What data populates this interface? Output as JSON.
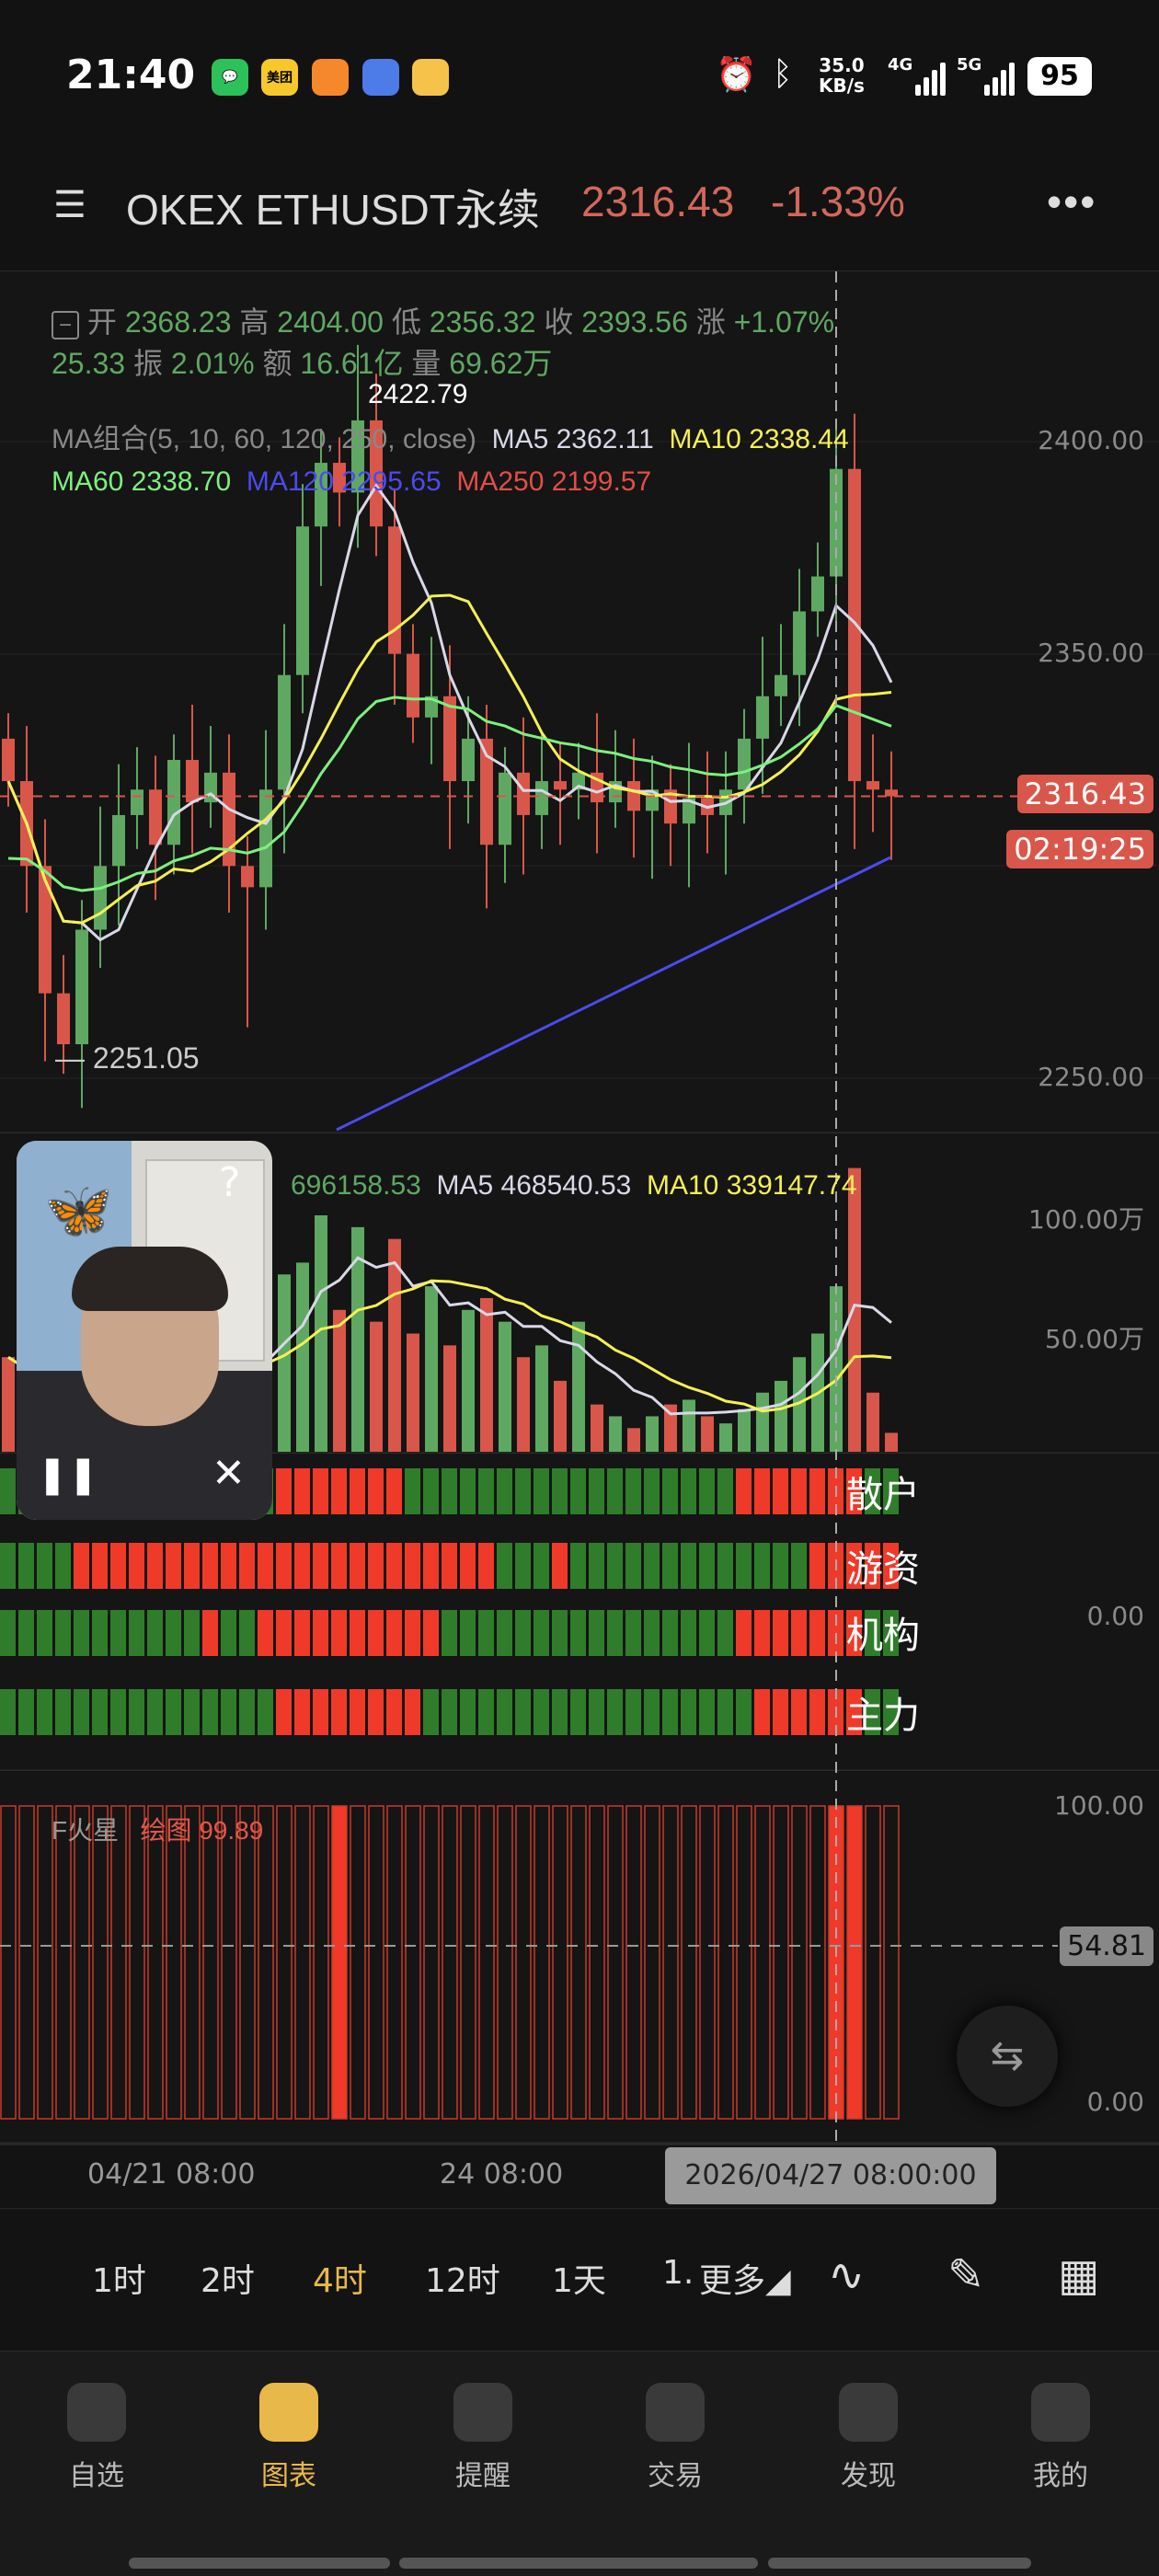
{
  "status_bar": {
    "time": "21:40",
    "apps": [
      "wechat-icon",
      "meituan-icon",
      "app-orange-icon",
      "app-blue-icon",
      "weibo-icon"
    ],
    "meituan_text": "美团",
    "net_speed": "35.0",
    "net_unit": "KB/s",
    "sig1": "4G",
    "sig2": "5G",
    "battery": "95"
  },
  "header": {
    "title": "OKEX ETHUSDT永续",
    "price": "2316.43",
    "change": "-1.33%"
  },
  "info": {
    "open_label": "开",
    "open": "2368.23",
    "high_label": "高",
    "high": "2404.00",
    "low_label": "低",
    "low": "2356.32",
    "close_label": "收",
    "close": "2393.56",
    "chg_label": "涨",
    "chg": "+1.07%",
    "chg_amt": "25.33",
    "amp_label": "振",
    "amp": "2.01%",
    "amt_label": "额",
    "amt": "16.61亿",
    "vol_label": "量",
    "vol": "69.62万"
  },
  "ma": {
    "title": "MA组合(5, 10, 60, 120, 250, close)",
    "ma5": "MA5 2362.11",
    "ma10": "MA10 2338.44",
    "ma60": "MA60 2338.70",
    "ma120": "MA120 2295.65",
    "ma250": "MA250 2199.57"
  },
  "price_axis": [
    "2400.00",
    "2350.00",
    "2250.00"
  ],
  "price_tag": "2316.43",
  "countdown": "02:19:25",
  "max_label": "2422.79",
  "min_label": "— 2251.05",
  "volume": {
    "vol": "696158.53",
    "ma5": "MA5 468540.53",
    "ma10": "MA10 339147.74",
    "axis": [
      "100.00万",
      "50.00万"
    ]
  },
  "indicator": {
    "labels": [
      "散户",
      "游资",
      "机构",
      "主力"
    ],
    "axis": "0.00",
    "rows": [
      "GGGGGGGGGGGGGGGRRRRRRRGGGGGGGGGGGGGGGGGGRRRRRRRGG",
      "GGGGRRRRRRRRRRRRRRRRRRRRRRRGGGRGGGGGGGGGGGGGRRRRR",
      "GGGGGGGGGGGRGGRRRRRRRRRRGGGGGGGGGGGGGGGGRRRRRRRGG",
      "GGGGGGGGGGGGGGGRRRRRRRRGGGGGGGGGGGGGGGGGGRRRRRRGG"
    ]
  },
  "mars": {
    "name": "F火星",
    "plot": "绘图 99.89",
    "axis_top": "100.00",
    "axis_bottom": "0.00",
    "current": "54.81",
    "filled": [
      18,
      45,
      46
    ]
  },
  "time_axis": {
    "labels": [
      "04/21 08:00",
      "24 08:00"
    ],
    "crosshair": "2026/04/27 08:00:00"
  },
  "timeframes": [
    {
      "label": "1时"
    },
    {
      "label": "2时"
    },
    {
      "label": "4时",
      "active": true
    },
    {
      "label": "12时"
    },
    {
      "label": "1天"
    },
    {
      "label": "1."
    },
    {
      "label": "更多◢"
    }
  ],
  "nav": [
    {
      "label": "自选"
    },
    {
      "label": "图表",
      "active": true
    },
    {
      "label": "提醒"
    },
    {
      "label": "交易"
    },
    {
      "label": "发现"
    },
    {
      "label": "我的"
    }
  ],
  "colors": {
    "up": "#5fa862",
    "down": "#d8574a",
    "accent": "#e8b84a",
    "ma5": "#d8d8e8",
    "ma10": "#f5f055",
    "ma60": "#7ef07e",
    "ma120": "#4b4bf0"
  },
  "chart_data": {
    "type": "candlestick",
    "ylim": [
      2240,
      2430
    ],
    "closes": [
      2320,
      2300,
      2270,
      2258,
      2285,
      2300,
      2312,
      2318,
      2305,
      2325,
      2315,
      2322,
      2300,
      2295,
      2318,
      2345,
      2380,
      2395,
      2388,
      2405,
      2380,
      2350,
      2335,
      2340,
      2320,
      2330,
      2305,
      2322,
      2312,
      2320,
      2318,
      2322,
      2315,
      2320,
      2313,
      2318,
      2310,
      2316,
      2312,
      2318,
      2330,
      2340,
      2345,
      2360,
      2368.23,
      2393.56,
      2320,
      2318,
      2316.43
    ],
    "volume_wan": [
      40,
      30,
      35,
      45,
      50,
      40,
      30,
      38,
      45,
      30,
      35,
      42,
      28,
      36,
      48,
      75,
      80,
      100,
      60,
      95,
      55,
      90,
      50,
      70,
      45,
      60,
      65,
      55,
      40,
      45,
      30,
      55,
      20,
      15,
      10,
      15,
      20,
      22,
      15,
      12,
      18,
      25,
      30,
      40,
      50,
      70,
      120,
      25,
      8
    ]
  }
}
